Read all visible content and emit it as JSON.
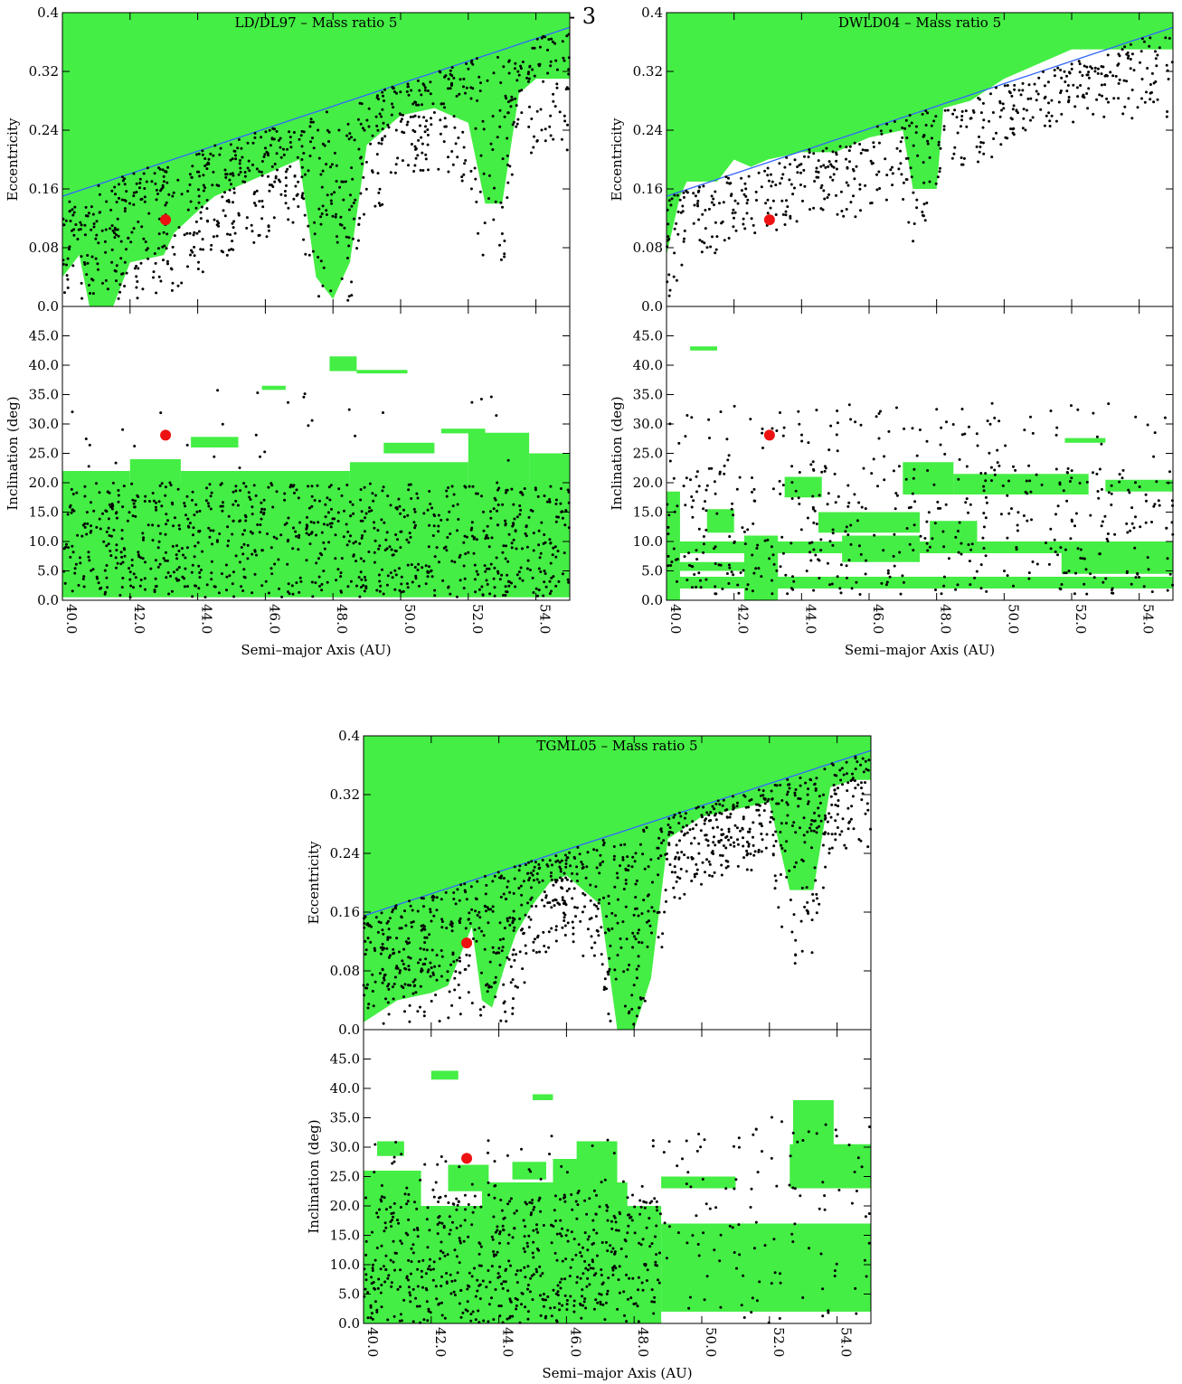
{
  "page_number": "- 3",
  "colors": {
    "stable_region": "#44ee44",
    "particles": "#000000",
    "limit_curve": "#3366ff",
    "object_marker": "#ee1111"
  },
  "chart_data": [
    {
      "type": "scatter",
      "title": "LD/DL97 – Mass ratio 5",
      "xlabel": "Semi–major Axis (AU)",
      "xlim": [
        40,
        55
      ],
      "x_ticks": [
        "40.0",
        "42.0",
        "44.0",
        "46.0",
        "48.0",
        "50.0",
        "52.0",
        "54.0"
      ],
      "eccentricity_panel": {
        "ylabel": "Eccentricity",
        "ylim": [
          0,
          0.4
        ],
        "y_ticks": [
          "0.0",
          "0.08",
          "0.16",
          "0.24",
          "0.32",
          "0.4"
        ],
        "limit_curve": {
          "x": [
            40,
            55
          ],
          "y": [
            0.15,
            0.38
          ]
        },
        "stable_region_lower_edge": {
          "x": [
            40,
            40.5,
            40.8,
            41.5,
            42,
            43,
            43.3,
            44,
            44.5,
            45,
            46,
            47,
            47.5,
            48,
            48.5,
            49,
            50,
            51,
            52,
            52.5,
            53,
            53.5,
            54,
            55
          ],
          "y": [
            0.04,
            0.07,
            0.0,
            0.0,
            0.06,
            0.07,
            0.1,
            0.13,
            0.15,
            0.16,
            0.18,
            0.2,
            0.04,
            0.01,
            0.06,
            0.22,
            0.26,
            0.27,
            0.25,
            0.14,
            0.14,
            0.29,
            0.31,
            0.31
          ]
        },
        "object": {
          "a": 43.05,
          "e": 0.118
        },
        "particle_count": 900
      },
      "inclination_panel": {
        "ylabel": "Inclination (deg)",
        "ylim": [
          0,
          50
        ],
        "y_ticks": [
          "0.0",
          "5.0",
          "10.0",
          "15.0",
          "20.0",
          "25.0",
          "30.0",
          "35.0",
          "40.0",
          "45.0"
        ],
        "stable_blocks": [
          {
            "a": [
              40,
              55
            ],
            "i": [
              0.5,
              20
            ]
          },
          {
            "a": [
              40,
              42
            ],
            "i": [
              20,
              22
            ]
          },
          {
            "a": [
              42,
              43.5
            ],
            "i": [
              20,
              24
            ]
          },
          {
            "a": [
              43.5,
              48.5
            ],
            "i": [
              20,
              22
            ]
          },
          {
            "a": [
              48.5,
              52
            ],
            "i": [
              20,
              23.5
            ]
          },
          {
            "a": [
              52,
              53.8
            ],
            "i": [
              20,
              28.5
            ]
          },
          {
            "a": [
              53.8,
              55
            ],
            "i": [
              20,
              25
            ]
          },
          {
            "a": [
              43.8,
              45.2
            ],
            "i": [
              26,
              27.8
            ]
          },
          {
            "a": [
              49.5,
              51
            ],
            "i": [
              25,
              26.8
            ]
          },
          {
            "a": [
              51.2,
              52.5
            ],
            "i": [
              28.4,
              29.2
            ]
          },
          {
            "a": [
              47.9,
              48.7
            ],
            "i": [
              39,
              41.5
            ]
          },
          {
            "a": [
              48.7,
              50.2
            ],
            "i": [
              38.6,
              39.2
            ]
          },
          {
            "a": [
              45.9,
              46.6
            ],
            "i": [
              35.8,
              36.5
            ]
          }
        ],
        "object": {
          "a": 43.05,
          "i": 28.1
        },
        "particle_count": 900
      }
    },
    {
      "type": "scatter",
      "title": "DWLD04 – Mass ratio 5",
      "xlabel": "Semi–major Axis (AU)",
      "xlim": [
        40,
        55
      ],
      "x_ticks": [
        "40.0",
        "42.0",
        "44.0",
        "46.0",
        "48.0",
        "50.0",
        "52.0",
        "54.0"
      ],
      "eccentricity_panel": {
        "ylabel": "Eccentricity",
        "ylim": [
          0,
          0.4
        ],
        "y_ticks": [
          "0.0",
          "0.08",
          "0.16",
          "0.24",
          "0.32",
          "0.4"
        ],
        "limit_curve": {
          "x": [
            40,
            55
          ],
          "y": [
            0.15,
            0.38
          ]
        },
        "stable_region_lower_edge": {
          "x": [
            40,
            40.4,
            40.6,
            41.5,
            42,
            42.5,
            43,
            44,
            45,
            46,
            47,
            47.3,
            48,
            48.2,
            49,
            50,
            51,
            52,
            53,
            54,
            55
          ],
          "y": [
            0.07,
            0.15,
            0.17,
            0.17,
            0.2,
            0.19,
            0.2,
            0.21,
            0.21,
            0.23,
            0.24,
            0.16,
            0.16,
            0.27,
            0.28,
            0.31,
            0.33,
            0.35,
            0.35,
            0.35,
            0.35
          ]
        },
        "object": {
          "a": 43.05,
          "e": 0.118
        },
        "particle_count": 550
      },
      "inclination_panel": {
        "ylabel": "Inclination (deg)",
        "ylim": [
          0,
          50
        ],
        "y_ticks": [
          "0.0",
          "5.0",
          "10.0",
          "15.0",
          "20.0",
          "25.0",
          "30.0",
          "35.0",
          "40.0",
          "45.0"
        ],
        "stable_blocks": [
          {
            "a": [
              40,
              40.4
            ],
            "i": [
              0,
              18.5
            ]
          },
          {
            "a": [
              40.4,
              55
            ],
            "i": [
              2,
              4
            ]
          },
          {
            "a": [
              40.4,
              55
            ],
            "i": [
              8,
              10
            ]
          },
          {
            "a": [
              42.3,
              43.3
            ],
            "i": [
              0,
              11
            ]
          },
          {
            "a": [
              40.4,
              42.5
            ],
            "i": [
              5,
              6.5
            ]
          },
          {
            "a": [
              41.2,
              42
            ],
            "i": [
              11.5,
              15.5
            ]
          },
          {
            "a": [
              43.5,
              44.6
            ],
            "i": [
              17.5,
              21
            ]
          },
          {
            "a": [
              44.5,
              47.5
            ],
            "i": [
              11.5,
              15
            ]
          },
          {
            "a": [
              45.2,
              47.5
            ],
            "i": [
              6.5,
              11
            ]
          },
          {
            "a": [
              47,
              48.5
            ],
            "i": [
              18,
              23.5
            ]
          },
          {
            "a": [
              48.5,
              52.5
            ],
            "i": [
              18,
              21.5
            ]
          },
          {
            "a": [
              47.8,
              49.2
            ],
            "i": [
              8,
              13.5
            ]
          },
          {
            "a": [
              51.7,
              55
            ],
            "i": [
              4.5,
              8.5
            ]
          },
          {
            "a": [
              53,
              55
            ],
            "i": [
              18.5,
              20.5
            ]
          },
          {
            "a": [
              51.8,
              53
            ],
            "i": [
              26.8,
              27.6
            ]
          },
          {
            "a": [
              40.7,
              41.5
            ],
            "i": [
              42.5,
              43.2
            ]
          }
        ],
        "object": {
          "a": 43.05,
          "i": 28.1
        },
        "particle_count": 550
      }
    },
    {
      "type": "scatter",
      "title": "TGML05 – Mass ratio 5",
      "xlabel": "Semi–major Axis (AU)",
      "xlim": [
        40,
        55
      ],
      "x_ticks": [
        "40.0",
        "42.0",
        "44.0",
        "46.0",
        "48.0",
        "50.0",
        "52.0",
        "54.0"
      ],
      "eccentricity_panel": {
        "ylabel": "Eccentricity",
        "ylim": [
          0,
          0.4
        ],
        "y_ticks": [
          "0.0",
          "0.08",
          "0.16",
          "0.24",
          "0.32",
          "0.4"
        ],
        "limit_curve": {
          "x": [
            40,
            55
          ],
          "y": [
            0.155,
            0.38
          ]
        },
        "stable_region_lower_edge": {
          "x": [
            40,
            41,
            42,
            42.5,
            43.2,
            43.5,
            43.8,
            44.2,
            44.5,
            45,
            45.5,
            46,
            46.5,
            47,
            47.5,
            48,
            48.5,
            49,
            50,
            51,
            52,
            52.6,
            53.3,
            53.8,
            54.5,
            55
          ],
          "y": [
            0.01,
            0.04,
            0.05,
            0.06,
            0.14,
            0.04,
            0.03,
            0.09,
            0.13,
            0.17,
            0.2,
            0.21,
            0.19,
            0.17,
            0.0,
            0.0,
            0.07,
            0.26,
            0.29,
            0.3,
            0.31,
            0.19,
            0.19,
            0.33,
            0.34,
            0.34
          ]
        },
        "object": {
          "a": 43.05,
          "e": 0.118
        },
        "particle_count": 1100
      },
      "inclination_panel": {
        "ylabel": "Inclination (deg)",
        "ylim": [
          0,
          50
        ],
        "y_ticks": [
          "0.0",
          "5.0",
          "10.0",
          "15.0",
          "20.0",
          "25.0",
          "30.0",
          "35.0",
          "40.0",
          "45.0"
        ],
        "stable_blocks": [
          {
            "a": [
              40,
              48.8
            ],
            "i": [
              0,
              20
            ]
          },
          {
            "a": [
              40,
              41.7
            ],
            "i": [
              20,
              26
            ]
          },
          {
            "a": [
              48.8,
              55
            ],
            "i": [
              2,
              17
            ]
          },
          {
            "a": [
              43.5,
              47.8
            ],
            "i": [
              20,
              24
            ]
          },
          {
            "a": [
              42.5,
              43.7
            ],
            "i": [
              22.5,
              27
            ]
          },
          {
            "a": [
              44.4,
              45.4
            ],
            "i": [
              24.5,
              27.5
            ]
          },
          {
            "a": [
              45.6,
              47.5
            ],
            "i": [
              22,
              28
            ]
          },
          {
            "a": [
              46.3,
              47.5
            ],
            "i": [
              28,
              31
            ]
          },
          {
            "a": [
              40.4,
              41.2
            ],
            "i": [
              28.5,
              31
            ]
          },
          {
            "a": [
              52.6,
              55
            ],
            "i": [
              23,
              30.5
            ]
          },
          {
            "a": [
              52.7,
              53.9
            ],
            "i": [
              30,
              38
            ]
          },
          {
            "a": [
              48.8,
              51
            ],
            "i": [
              23,
              25
            ]
          },
          {
            "a": [
              42,
              42.8
            ],
            "i": [
              41.5,
              43
            ]
          },
          {
            "a": [
              45,
              45.6
            ],
            "i": [
              38,
              39
            ]
          }
        ],
        "object": {
          "a": 43.05,
          "i": 28.1
        },
        "particle_count": 1100
      }
    }
  ]
}
